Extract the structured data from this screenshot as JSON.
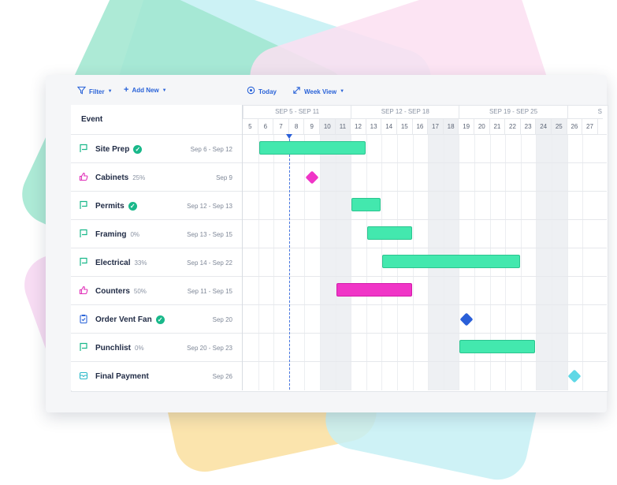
{
  "toolbar": {
    "filter_label": "Filter",
    "add_new_label": "Add New",
    "today_label": "Today",
    "view_label": "Week View"
  },
  "list_header": "Event",
  "weeks": [
    "SEP 5 - SEP 11",
    "SEP 12 - SEP 18",
    "SEP 19 - SEP 25",
    "S"
  ],
  "days": [
    "5",
    "6",
    "7",
    "8",
    "9",
    "10",
    "11",
    "12",
    "13",
    "14",
    "15",
    "16",
    "17",
    "18",
    "19",
    "20",
    "21",
    "22",
    "23",
    "24",
    "25",
    "26",
    "27"
  ],
  "events": [
    {
      "name": "Site Prep",
      "pct": "",
      "complete": true,
      "dates": "Sep 6 - Sep 12",
      "icon": "flag-icon"
    },
    {
      "name": "Cabinets",
      "pct": "25%",
      "complete": false,
      "dates": "Sep 9",
      "icon": "thumbs-up-icon"
    },
    {
      "name": "Permits",
      "pct": "",
      "complete": true,
      "dates": "Sep 12 - Sep 13",
      "icon": "flag-icon"
    },
    {
      "name": "Framing",
      "pct": "0%",
      "complete": false,
      "dates": "Sep 13 - Sep 15",
      "icon": "flag-icon"
    },
    {
      "name": "Electrical",
      "pct": "33%",
      "complete": false,
      "dates": "Sep 14 - Sep 22",
      "icon": "flag-icon"
    },
    {
      "name": "Counters",
      "pct": "50%",
      "complete": false,
      "dates": "Sep 11 - Sep 15",
      "icon": "thumbs-up-icon"
    },
    {
      "name": "Order Vent Fan",
      "pct": "",
      "complete": true,
      "dates": "Sep 20",
      "icon": "clipboard-icon"
    },
    {
      "name": "Punchlist",
      "pct": "0%",
      "complete": false,
      "dates": "Sep 20 - Sep 23",
      "icon": "flag-icon"
    },
    {
      "name": "Final Payment",
      "pct": "",
      "complete": false,
      "dates": "Sep 26",
      "icon": "payment-icon"
    }
  ],
  "colors": {
    "accent": "#2a63d8",
    "task_green": "#43e8ae",
    "task_pink": "#f035c7",
    "milestone_blue": "#2a5fd8",
    "milestone_cyan": "#5fd8e6",
    "check_green": "#19b88a"
  }
}
